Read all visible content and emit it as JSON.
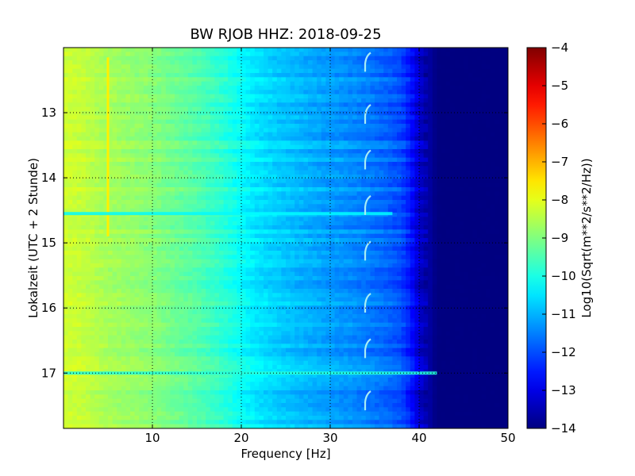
{
  "chart_data": {
    "type": "heatmap",
    "title": "BW RJOB HHZ: 2018-09-25",
    "xlabel": "Frequency [Hz]",
    "ylabel": "Lokalzeit (UTC + 2 Stunde)",
    "colorbar_label": "Log10(Sqrt(m**2/s**2/Hz))",
    "xlim": [
      0,
      50
    ],
    "ylim": [
      12.0,
      17.85
    ],
    "y_inverted": true,
    "x_ticks": [
      10,
      20,
      30,
      40,
      50
    ],
    "x_tick_labels": [
      "10",
      "20",
      "30",
      "40",
      "50"
    ],
    "y_ticks": [
      13,
      14,
      15,
      16,
      17
    ],
    "y_tick_labels": [
      "13",
      "14",
      "15",
      "16",
      "17"
    ],
    "color_range": [
      -14,
      -4
    ],
    "colorbar_ticks": [
      -4,
      -5,
      -6,
      -7,
      -8,
      -9,
      -10,
      -11,
      -12,
      -13,
      -14
    ],
    "colorbar_tick_labels": [
      "−4",
      "−5",
      "−6",
      "−7",
      "−8",
      "−9",
      "−10",
      "−11",
      "−12",
      "−13",
      "−14"
    ],
    "colormap": "jet",
    "grid": true,
    "grid_style": "dotted",
    "spectrum_profile": {
      "frequency_hz": [
        0,
        2,
        5,
        10,
        15,
        18,
        20,
        22,
        25,
        30,
        33,
        36,
        38,
        39,
        40,
        42,
        45,
        50
      ],
      "value": [
        -8.2,
        -8.3,
        -8.6,
        -8.9,
        -9.4,
        -9.8,
        -10.2,
        -10.5,
        -10.8,
        -11.2,
        -11.4,
        -11.7,
        -12.0,
        -12.5,
        -13.2,
        -14.0,
        -14.0,
        -14.0
      ]
    },
    "features": [
      {
        "kind": "vertical_line",
        "frequency_hz": 5.0,
        "time_from": 12.15,
        "time_to": 14.9,
        "value": -7.6
      },
      {
        "kind": "horizontal_band",
        "time": 14.55,
        "freq_from": 0,
        "freq_to": 37,
        "value": -10.3
      },
      {
        "kind": "horizontal_band",
        "time": 17.0,
        "freq_from": 0,
        "freq_to": 42,
        "value": -9.9
      },
      {
        "kind": "tonal_hook",
        "frequency_hz": 34.2,
        "times": [
          12.2,
          13.0,
          13.7,
          14.4,
          15.1,
          15.9,
          16.6,
          17.4
        ]
      }
    ]
  }
}
